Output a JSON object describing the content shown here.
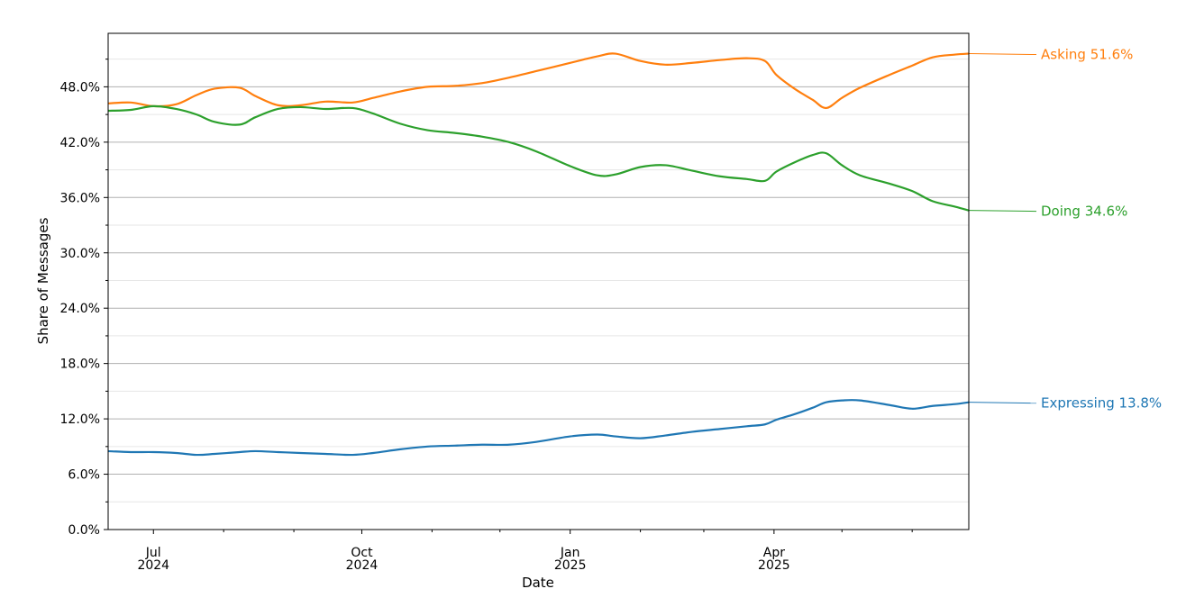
{
  "chart_data": {
    "type": "line",
    "xlabel": "Date",
    "ylabel": "Share of Messages",
    "xlim": [
      "2024-06-11",
      "2025-06-26"
    ],
    "ylim": [
      0,
      53.8
    ],
    "yticks": [
      0,
      6,
      12,
      18,
      24,
      30,
      36,
      42,
      48
    ],
    "ytick_labels": [
      "0.0%",
      "6.0%",
      "12.0%",
      "18.0%",
      "24.0%",
      "30.0%",
      "36.0%",
      "42.0%",
      "48.0%"
    ],
    "xticks": [
      {
        "date": "2024-07-01",
        "label": "Jul",
        "sublabel": "2024"
      },
      {
        "date": "2024-10-01",
        "label": "Oct",
        "sublabel": "2024"
      },
      {
        "date": "2025-01-01",
        "label": "Jan",
        "sublabel": "2025"
      },
      {
        "date": "2025-04-01",
        "label": "Apr",
        "sublabel": "2025"
      }
    ],
    "xminor": [
      "2024-08-01",
      "2024-09-01",
      "2024-11-01",
      "2024-12-01",
      "2025-02-01",
      "2025-03-01",
      "2025-05-01",
      "2025-06-01"
    ],
    "grid": true,
    "legend": "end-of-line labels (right)",
    "x": [
      "2024-06-11",
      "2024-06-21",
      "2024-07-01",
      "2024-07-11",
      "2024-07-20",
      "2024-07-28",
      "2024-08-08",
      "2024-08-15",
      "2024-08-25",
      "2024-09-04",
      "2024-09-15",
      "2024-09-27",
      "2024-10-06",
      "2024-10-18",
      "2024-10-30",
      "2024-11-11",
      "2024-11-23",
      "2024-12-05",
      "2024-12-17",
      "2025-01-01",
      "2025-01-13",
      "2025-01-21",
      "2025-02-01",
      "2025-02-12",
      "2025-02-24",
      "2025-03-08",
      "2025-03-20",
      "2025-03-28",
      "2025-04-02",
      "2025-04-10",
      "2025-04-18",
      "2025-04-24",
      "2025-05-01",
      "2025-05-09",
      "2025-05-22",
      "2025-06-01",
      "2025-06-10",
      "2025-06-20",
      "2025-06-26"
    ],
    "series": [
      {
        "name": "Asking",
        "end_label": "51.6%",
        "color": "#ff7f0e",
        "values": [
          46.2,
          46.3,
          45.9,
          46.1,
          47.1,
          47.8,
          47.9,
          47.0,
          46.0,
          46.0,
          46.4,
          46.3,
          46.8,
          47.5,
          48.0,
          48.1,
          48.4,
          49.0,
          49.7,
          50.6,
          51.3,
          51.6,
          50.8,
          50.4,
          50.6,
          50.9,
          51.1,
          50.8,
          49.3,
          47.8,
          46.6,
          45.7,
          46.8,
          47.9,
          49.3,
          50.3,
          51.2,
          51.5,
          51.6
        ]
      },
      {
        "name": "Doing",
        "end_label": "34.6%",
        "color": "#2ca02c",
        "values": [
          45.4,
          45.5,
          45.9,
          45.6,
          45.0,
          44.2,
          43.9,
          44.7,
          45.6,
          45.8,
          45.6,
          45.7,
          45.1,
          44.0,
          43.3,
          43.0,
          42.6,
          42.0,
          41.0,
          39.4,
          38.4,
          38.5,
          39.3,
          39.5,
          38.9,
          38.3,
          38.0,
          37.8,
          38.8,
          39.8,
          40.6,
          40.8,
          39.5,
          38.4,
          37.5,
          36.7,
          35.6,
          35.0,
          34.6
        ]
      },
      {
        "name": "Expressing",
        "end_label": "13.8%",
        "color": "#1f77b4",
        "values": [
          8.5,
          8.4,
          8.4,
          8.3,
          8.1,
          8.2,
          8.4,
          8.5,
          8.4,
          8.3,
          8.2,
          8.1,
          8.3,
          8.7,
          9.0,
          9.1,
          9.2,
          9.2,
          9.5,
          10.1,
          10.3,
          10.1,
          9.9,
          10.2,
          10.6,
          10.9,
          11.2,
          11.4,
          11.9,
          12.5,
          13.2,
          13.8,
          14.0,
          14.0,
          13.5,
          13.1,
          13.4,
          13.6,
          13.8
        ]
      }
    ]
  }
}
